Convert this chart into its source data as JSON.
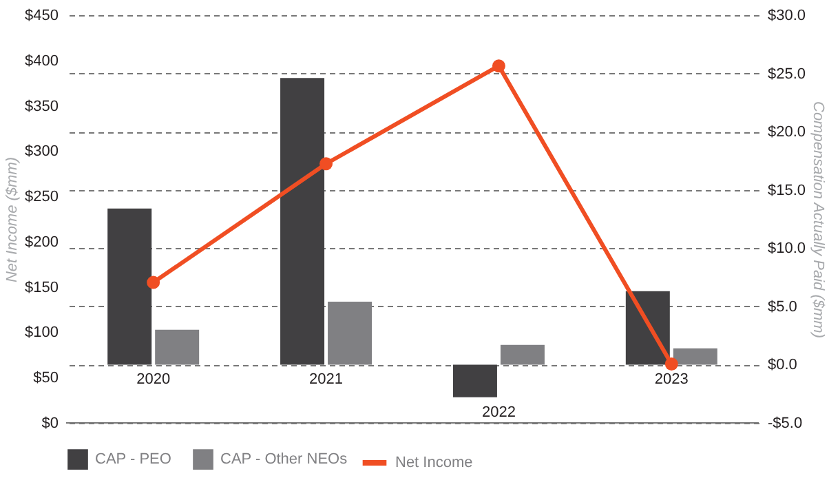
{
  "chart_data": {
    "type": "bar",
    "categories": [
      "2020",
      "2021",
      "2022",
      "2023"
    ],
    "ylabel": "Net Income ($mm)",
    "y2label": "Compensation Actually Paid ($mm)",
    "series": [
      {
        "name": "CAP - PEO",
        "axis": "y2",
        "color": "#414042",
        "values": [
          13.4,
          24.6,
          -2.8,
          6.3
        ]
      },
      {
        "name": "CAP - Other NEOs",
        "axis": "y2",
        "color": "#808083",
        "values": [
          3.0,
          5.4,
          1.7,
          1.4
        ]
      },
      {
        "name": "Net Income",
        "type": "line",
        "axis": "y",
        "color": "#f04e23",
        "values": [
          155,
          286,
          394,
          65
        ]
      }
    ],
    "ylim": [
      0,
      450
    ],
    "yticks": [
      {
        "value": 0,
        "label": "$0"
      },
      {
        "value": 50,
        "label": "$50"
      },
      {
        "value": 100,
        "label": "$100"
      },
      {
        "value": 150,
        "label": "$150"
      },
      {
        "value": 200,
        "label": "$200"
      },
      {
        "value": 250,
        "label": "$250"
      },
      {
        "value": 300,
        "label": "$300"
      },
      {
        "value": 350,
        "label": "$350"
      },
      {
        "value": 400,
        "label": "$400"
      },
      {
        "value": 450,
        "label": "$450"
      }
    ],
    "y2lim": [
      -5,
      30
    ],
    "y2ticks": [
      {
        "value": -5,
        "label": "-$5.0"
      },
      {
        "value": 0,
        "label": "$0.0"
      },
      {
        "value": 5,
        "label": "$5.0"
      },
      {
        "value": 10,
        "label": "$10.0"
      },
      {
        "value": 15,
        "label": "$15.0"
      },
      {
        "value": 20,
        "label": "$20.0"
      },
      {
        "value": 25,
        "label": "$25.0"
      },
      {
        "value": 30,
        "label": "$30.0"
      }
    ],
    "grid": "y2",
    "legend": "bottom",
    "marker": "circle",
    "line_style": "solid"
  }
}
